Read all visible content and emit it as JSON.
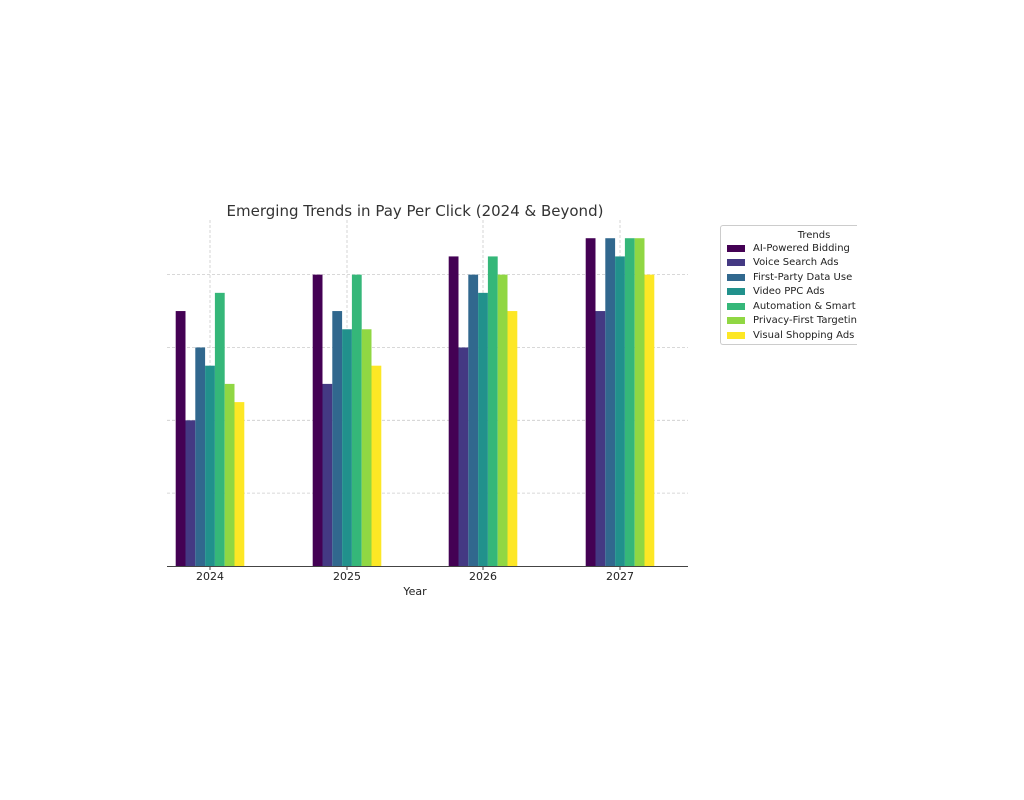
{
  "chart_data": {
    "type": "bar",
    "title": "Emerging Trends in Pay Per Click (2024 & Beyond)",
    "xlabel": "Year",
    "ylabel": "",
    "categories": [
      "2024",
      "2025",
      "2026",
      "2027"
    ],
    "ylim": [
      0,
      95
    ],
    "grid": true,
    "legend": {
      "title": "Trends",
      "placement": "outside-right"
    },
    "series": [
      {
        "name": "AI-Powered Bidding",
        "color": "#440154",
        "values": [
          70,
          80,
          85,
          90
        ]
      },
      {
        "name": "Voice Search Ads",
        "color": "#443983",
        "values": [
          40,
          50,
          60,
          70
        ]
      },
      {
        "name": "First-Party Data Use",
        "color": "#31688e",
        "values": [
          60,
          70,
          80,
          90
        ]
      },
      {
        "name": "Video PPC Ads",
        "color": "#21918c",
        "values": [
          55,
          65,
          75,
          85
        ]
      },
      {
        "name": "Automation & Smart Campaigns",
        "legend_label": "Automation & Smart C",
        "color": "#35b779",
        "values": [
          75,
          80,
          85,
          90
        ]
      },
      {
        "name": "Privacy-First Targeting",
        "color": "#90d743",
        "values": [
          50,
          65,
          80,
          90
        ]
      },
      {
        "name": "Visual Shopping Ads",
        "color": "#fde725",
        "values": [
          45,
          55,
          70,
          80
        ]
      }
    ]
  }
}
